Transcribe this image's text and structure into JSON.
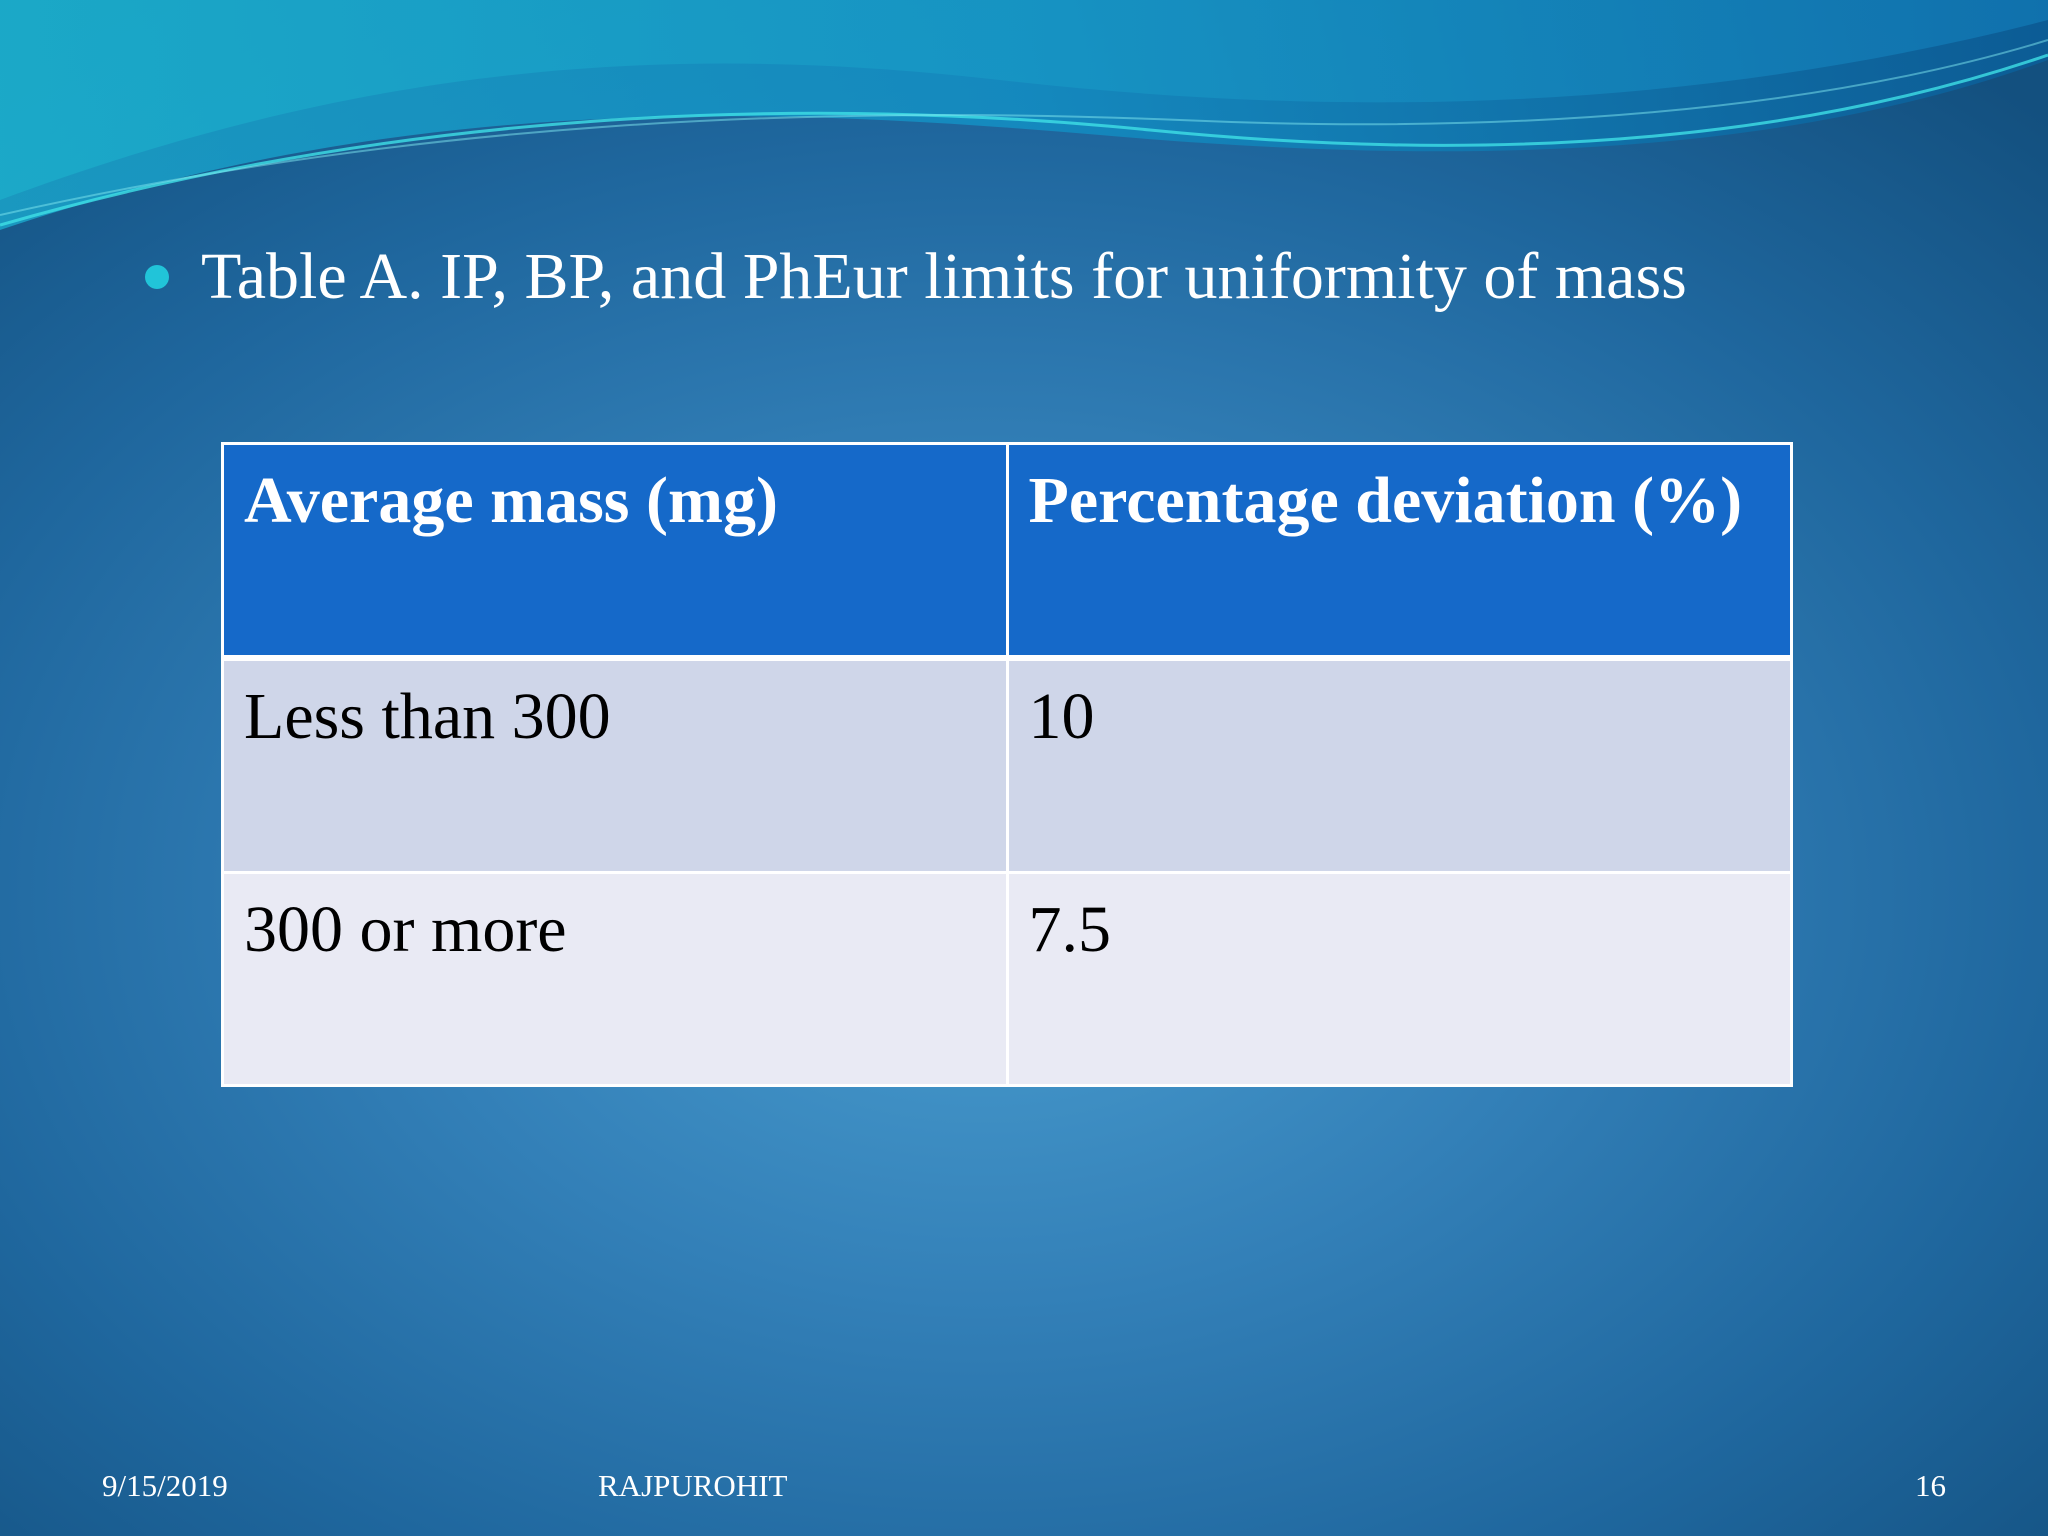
{
  "slide": {
    "bullet_text": "Table A.  IP, BP, and PhEur limits for uniformity of mass",
    "table": {
      "headers": [
        "Average mass (mg)",
        "Percentage deviation (%)"
      ],
      "rows": [
        [
          "Less than 300",
          "10"
        ],
        [
          "300 or more",
          "7.5"
        ]
      ]
    },
    "footer": {
      "date": "9/15/2019",
      "author": "RAJPUROHIT",
      "page_number": "16"
    }
  },
  "colors": {
    "background": "#3380b8",
    "bullet": "#21c4d9",
    "header_fill": "#1569c9",
    "row_fill_1": "#cfd6e9",
    "row_fill_2": "#e9eaf4"
  }
}
